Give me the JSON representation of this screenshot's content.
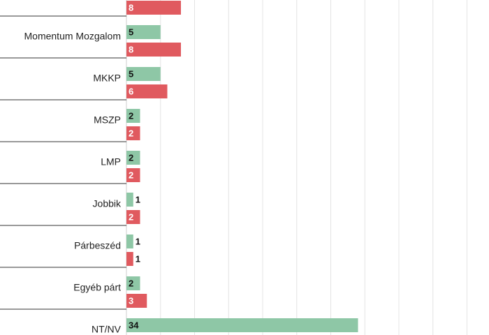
{
  "chart_data": {
    "type": "bar",
    "orientation": "horizontal",
    "categories": [
      "",
      "Momentum Mozgalom",
      "MKKP",
      "MSZP",
      "LMP",
      "Jobbik",
      "Párbeszéd",
      "Egyéb párt",
      "NT/NV"
    ],
    "series": [
      {
        "values": [
          null,
          5,
          5,
          2,
          2,
          1,
          1,
          2,
          34
        ],
        "color": "#8ec7a6"
      },
      {
        "values": [
          8,
          8,
          6,
          2,
          2,
          2,
          1,
          3,
          null
        ],
        "color": "#e05a5f"
      }
    ],
    "xlim": [
      0,
      50
    ],
    "grid": true,
    "legend": "none"
  }
}
